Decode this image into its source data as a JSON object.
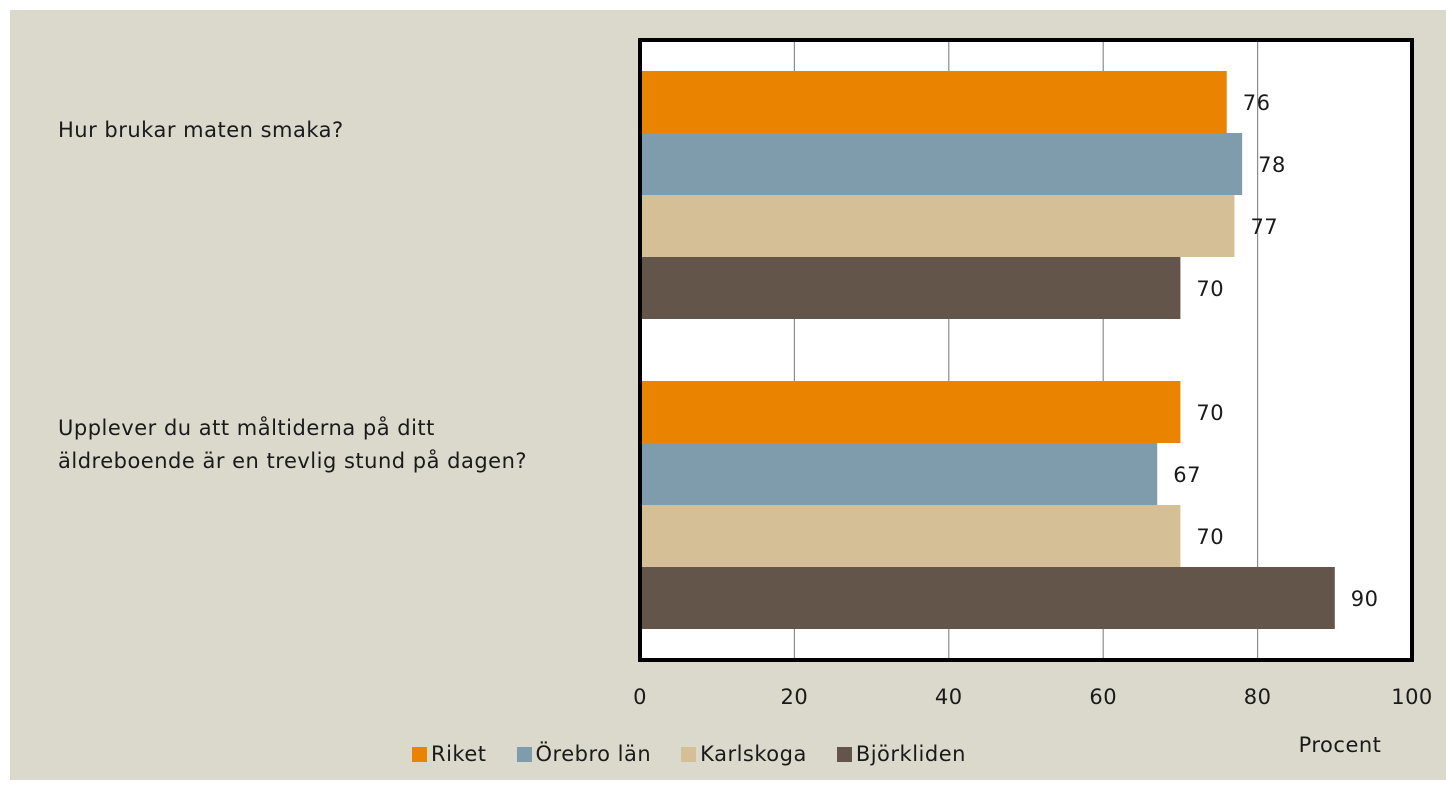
{
  "chart_data": {
    "type": "bar",
    "orientation": "horizontal",
    "categories": [
      "Hur brukar maten smaka?",
      "Upplever du att måltiderna på ditt äldreboende är en trevlig stund på dagen?"
    ],
    "series": [
      {
        "name": "Riket",
        "color": "#e98300",
        "values": [
          76,
          70
        ]
      },
      {
        "name": "Örebro län",
        "color": "#7f9cad",
        "values": [
          78,
          67
        ]
      },
      {
        "name": "Karlskoga",
        "color": "#d4bf96",
        "values": [
          77,
          70
        ]
      },
      {
        "name": "Björkliden",
        "color": "#63554a",
        "values": [
          70,
          90
        ]
      }
    ],
    "x_label": "Procent",
    "xlim": [
      0,
      100
    ],
    "xticks": [
      0,
      20,
      40,
      60,
      80,
      100
    ],
    "grid": true
  }
}
